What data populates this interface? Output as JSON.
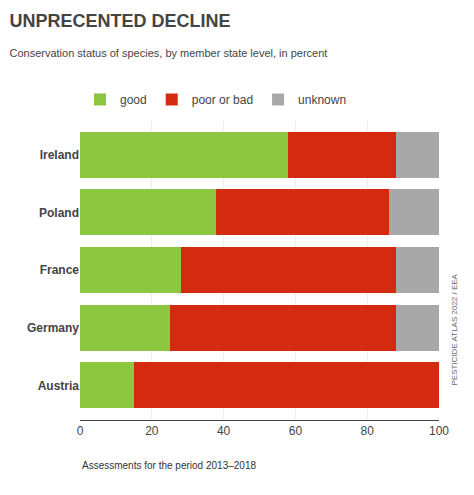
{
  "chart_data": {
    "type": "bar",
    "title": "UNPRECENTED DECLINE",
    "subtitle": "Conservation status of species, by member state level, in percent",
    "annotations": [
      "Assessments for the period 2013–2018",
      "PESTICIDE ATLAS 2022 / EEA"
    ],
    "orientation": "horizontal",
    "stacked": true,
    "categories": [
      "Austria",
      "Germany",
      "France",
      "Poland",
      "Ireland"
    ],
    "series": [
      {
        "name": "good",
        "color": "#8dc63f",
        "values": [
          15,
          25,
          28,
          38,
          58
        ]
      },
      {
        "name": "poor or bad",
        "color": "#d42a0f",
        "values": [
          85,
          63,
          60,
          48,
          30
        ]
      },
      {
        "name": "unknown",
        "color": "#a8a8a8",
        "values": [
          0,
          12,
          12,
          14,
          12
        ]
      }
    ],
    "xlim": [
      0,
      100
    ],
    "xticks": [
      0,
      20,
      40,
      60,
      80,
      100
    ],
    "grid": true,
    "legend": "top"
  }
}
